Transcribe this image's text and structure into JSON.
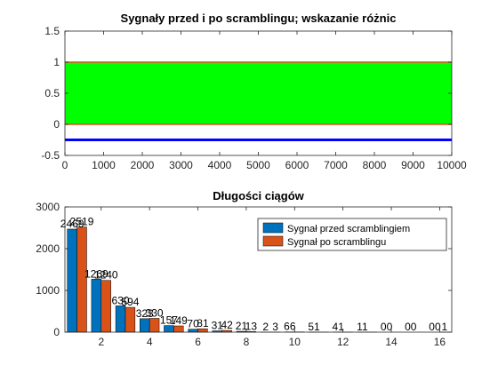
{
  "chart_data": [
    {
      "type": "area",
      "title": "Sygnały przed i po scramblingu; wskazanie różnic",
      "xlabel": "",
      "ylabel": "",
      "xlim": [
        0,
        10000
      ],
      "ylim": [
        -0.5,
        1.5
      ],
      "xticks": [
        "0",
        "1000",
        "2000",
        "3000",
        "4000",
        "5000",
        "6000",
        "7000",
        "8000",
        "9000",
        "10000"
      ],
      "yticks": [
        "-0.5",
        "0",
        "0.5",
        "1",
        "1.5"
      ],
      "grid": false,
      "series": [
        {
          "color": "#00ff00",
          "band": [
            0,
            1
          ]
        },
        {
          "color": "#d95319",
          "y": [
            0,
            1
          ]
        },
        {
          "color": "#0000ff",
          "y": -0.25
        }
      ]
    },
    {
      "type": "bar",
      "title": "Długości ciągów",
      "xlabel": "",
      "ylabel": "",
      "xlim": [
        0.5,
        16.5
      ],
      "ylim": [
        0,
        3000
      ],
      "xticks": [
        "2",
        "4",
        "6",
        "8",
        "10",
        "12",
        "14",
        "16"
      ],
      "yticks": [
        "0",
        "1000",
        "2000",
        "3000"
      ],
      "grid": false,
      "legend_position": "top-right",
      "categories": [
        1,
        2,
        3,
        4,
        5,
        6,
        7,
        8,
        9,
        10,
        11,
        12,
        13,
        14,
        15,
        16
      ],
      "series": [
        {
          "name": "Sygnał przed scramblingiem",
          "color": "#0072bd",
          "values": [
            2469,
            1269,
            630,
            323,
            157,
            70,
            31,
            21,
            2,
            6,
            5,
            4,
            1,
            0,
            0,
            0
          ]
        },
        {
          "name": "Sygnał po scramblingu",
          "color": "#d95319",
          "values": [
            2519,
            1240,
            594,
            330,
            149,
            81,
            42,
            13,
            3,
            6,
            1,
            1,
            1,
            0,
            0,
            1
          ]
        }
      ],
      "data_labels": [
        {
          "x": 1,
          "text": "2469"
        },
        {
          "x": 1,
          "text": "2519"
        },
        {
          "x": 2,
          "text": "1269"
        },
        {
          "x": 2,
          "text": "1240"
        },
        {
          "x": 3,
          "text": "630"
        },
        {
          "x": 3,
          "text": "594"
        },
        {
          "x": 4,
          "text": "323"
        },
        {
          "x": 4,
          "text": "330"
        },
        {
          "x": 5,
          "text": "157"
        },
        {
          "x": 5,
          "text": "149"
        },
        {
          "x": 6,
          "text": "70"
        },
        {
          "x": 6,
          "text": "81"
        },
        {
          "x": 7,
          "text": "31"
        },
        {
          "x": 7,
          "text": "42"
        },
        {
          "x": 8,
          "text": "21"
        },
        {
          "x": 8,
          "text": "13"
        },
        {
          "x": 9,
          "text": "2"
        },
        {
          "x": 9,
          "text": "3"
        },
        {
          "x": 10,
          "text": "66"
        },
        {
          "x": 11,
          "text": "51"
        },
        {
          "x": 12,
          "text": "41"
        },
        {
          "x": 13,
          "text": "11"
        },
        {
          "x": 14,
          "text": "00"
        },
        {
          "x": 15,
          "text": "00"
        },
        {
          "x": 16,
          "text": "00"
        },
        {
          "x": 16,
          "text": "1"
        }
      ]
    }
  ]
}
